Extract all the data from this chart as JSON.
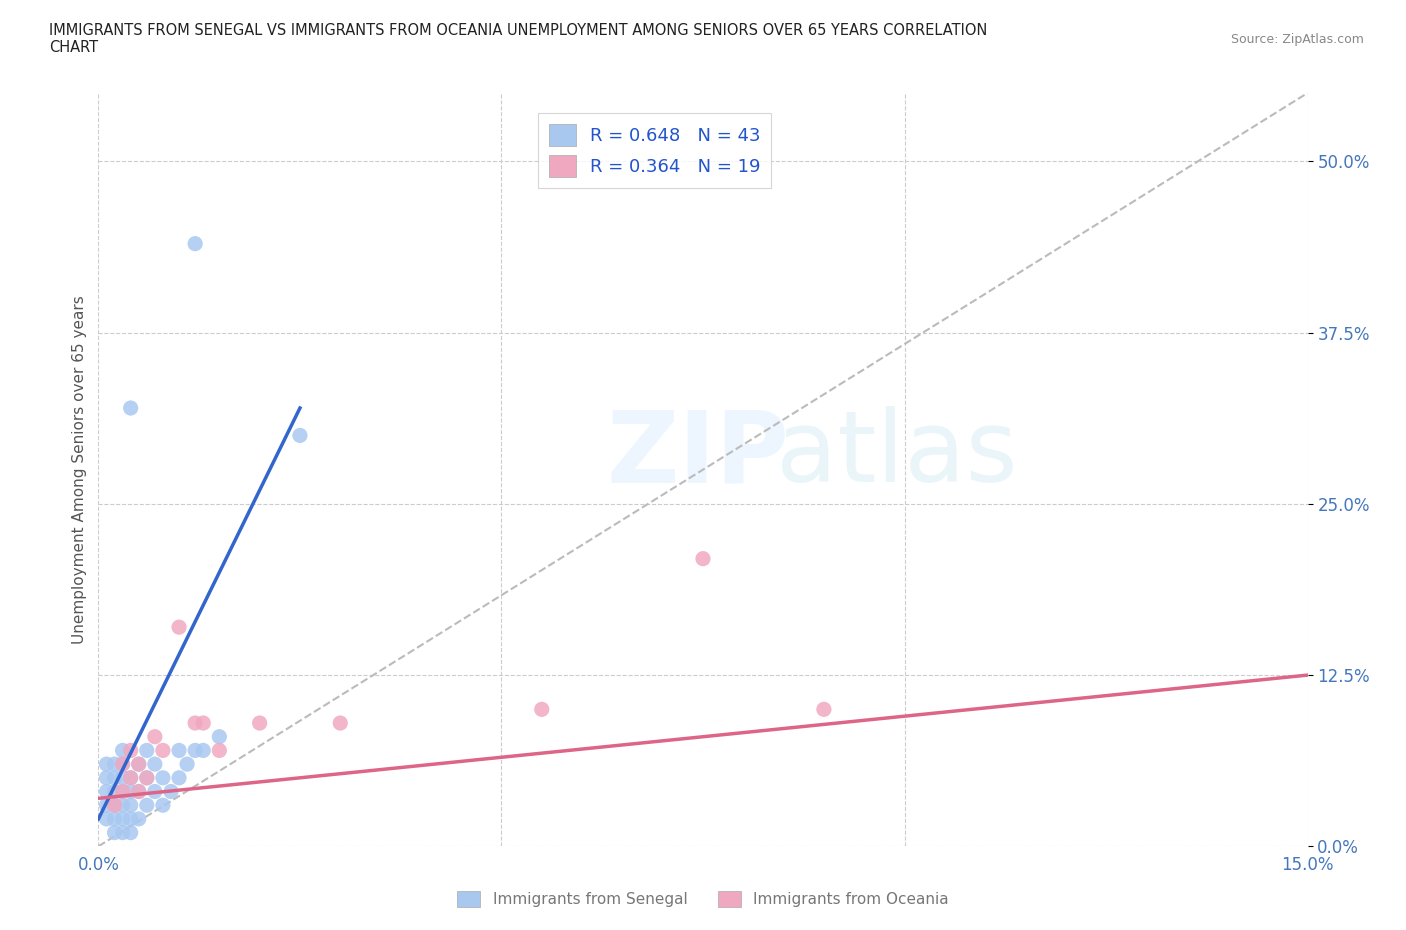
{
  "title_line1": "IMMIGRANTS FROM SENEGAL VS IMMIGRANTS FROM OCEANIA UNEMPLOYMENT AMONG SENIORS OVER 65 YEARS CORRELATION",
  "title_line2": "CHART",
  "source": "Source: ZipAtlas.com",
  "ylabel": "Unemployment Among Seniors over 65 years",
  "xlim": [
    0.0,
    0.15
  ],
  "ylim": [
    0.0,
    0.55
  ],
  "xticks": [
    0.0,
    0.05,
    0.1,
    0.15
  ],
  "xtick_labels": [
    "0.0%",
    "",
    "",
    "15.0%"
  ],
  "ytick_labels": [
    "0.0%",
    "12.5%",
    "25.0%",
    "37.5%",
    "50.0%"
  ],
  "yticks": [
    0.0,
    0.125,
    0.25,
    0.375,
    0.5
  ],
  "senegal_color": "#a8c8f0",
  "oceania_color": "#f0a8c0",
  "senegal_line_color": "#3366cc",
  "oceania_line_color": "#dd6688",
  "trendline_color": "#bbbbbb",
  "legend_label1": "R = 0.648   N = 43",
  "legend_label2": "R = 0.364   N = 19",
  "bottom_label1": "Immigrants from Senegal",
  "bottom_label2": "Immigrants from Oceania",
  "background_color": "#ffffff",
  "grid_color": "#cccccc",
  "tick_color": "#4477bb",
  "title_color": "#222222",
  "source_color": "#888888",
  "ylabel_color": "#555555",
  "senegal_x": [
    0.001,
    0.001,
    0.001,
    0.001,
    0.001,
    0.002,
    0.002,
    0.002,
    0.002,
    0.002,
    0.002,
    0.003,
    0.003,
    0.003,
    0.003,
    0.003,
    0.003,
    0.003,
    0.004,
    0.004,
    0.004,
    0.004,
    0.004,
    0.005,
    0.005,
    0.005,
    0.006,
    0.006,
    0.006,
    0.007,
    0.007,
    0.008,
    0.008,
    0.009,
    0.01,
    0.01,
    0.011,
    0.012,
    0.013,
    0.015,
    0.004,
    0.012,
    0.025
  ],
  "senegal_y": [
    0.02,
    0.03,
    0.04,
    0.05,
    0.06,
    0.01,
    0.02,
    0.03,
    0.04,
    0.05,
    0.06,
    0.01,
    0.02,
    0.03,
    0.04,
    0.05,
    0.06,
    0.07,
    0.01,
    0.02,
    0.03,
    0.04,
    0.05,
    0.02,
    0.04,
    0.06,
    0.03,
    0.05,
    0.07,
    0.04,
    0.06,
    0.03,
    0.05,
    0.04,
    0.05,
    0.07,
    0.06,
    0.07,
    0.07,
    0.08,
    0.32,
    0.44,
    0.3
  ],
  "oceania_x": [
    0.002,
    0.003,
    0.003,
    0.004,
    0.004,
    0.005,
    0.005,
    0.006,
    0.007,
    0.008,
    0.01,
    0.012,
    0.013,
    0.015,
    0.02,
    0.03,
    0.055,
    0.075,
    0.09
  ],
  "oceania_y": [
    0.03,
    0.04,
    0.06,
    0.05,
    0.07,
    0.04,
    0.06,
    0.05,
    0.08,
    0.07,
    0.16,
    0.09,
    0.09,
    0.07,
    0.09,
    0.09,
    0.1,
    0.21,
    0.1
  ],
  "ref_line_x": [
    0.0,
    0.15
  ],
  "ref_line_y": [
    0.0,
    0.55
  ]
}
